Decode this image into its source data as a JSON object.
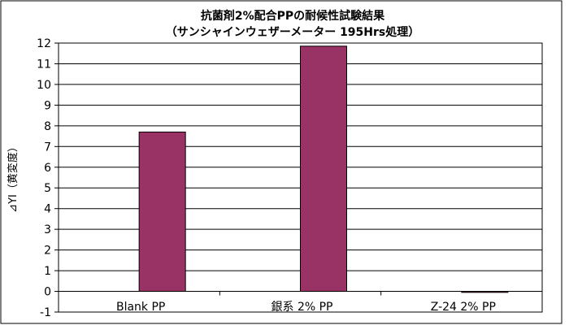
{
  "chart_data": {
    "type": "bar",
    "title": "抗菌剤2%配合PPの耐候性試験結果",
    "subtitle": "（サンシャインウェザーメーター 195Hrs処理）",
    "xlabel": "",
    "ylabel": "⊿YI（黄変度）",
    "categories": [
      "Blank  PP",
      "銀系 2% PP",
      "Z-24 2% PP"
    ],
    "values": [
      7.7,
      11.85,
      -0.05
    ],
    "ylim": [
      -1,
      12
    ],
    "yticks": [
      -1,
      0,
      1,
      2,
      3,
      4,
      5,
      6,
      7,
      8,
      9,
      10,
      11,
      12
    ],
    "grid": true,
    "legend": "none",
    "bar_color": "#993366"
  }
}
